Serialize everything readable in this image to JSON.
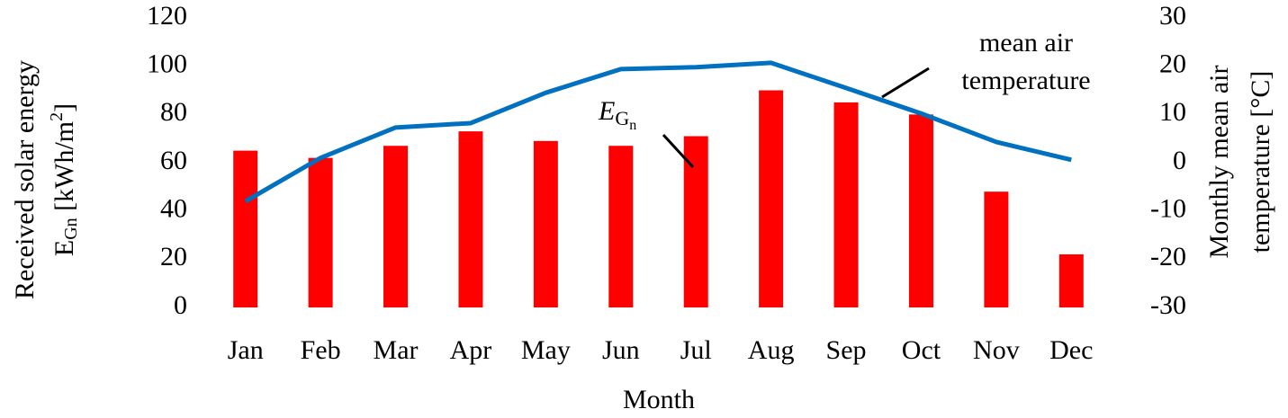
{
  "chart_data": {
    "type": "bar",
    "categories": [
      "Jan",
      "Feb",
      "Mar",
      "Apr",
      "May",
      "Jun",
      "Jul",
      "Aug",
      "Sep",
      "Oct",
      "Nov",
      "Dec"
    ],
    "series": [
      {
        "color": "#ff0000",
        "values": [
          65,
          62,
          67,
          73,
          69,
          67,
          71,
          90,
          85,
          80,
          48,
          22
        ]
      },
      {
        "type": "line",
        "axis": "y2",
        "color": "#0070c0",
        "values": [
          -8,
          1,
          7.3,
          8.2,
          14.5,
          19.4,
          19.8,
          20.7,
          15.5,
          10.2,
          4.3,
          0.6
        ]
      }
    ],
    "ylim": [
      0,
      120
    ],
    "yticks": [
      0,
      20,
      40,
      60,
      80,
      100,
      120
    ],
    "y2lim": [
      -30,
      30
    ],
    "y2ticks": [
      -30,
      -20,
      -10,
      0,
      10,
      20,
      30
    ],
    "x_label": "Month",
    "y_label": {
      "line1": "Received solar energy",
      "line2": [
        "E",
        "Gn",
        " [kWh/m",
        "2",
        "]"
      ]
    },
    "y2_label": [
      "Monthly mean air",
      "temperature [°C]"
    ],
    "annotations": {
      "temperature": [
        "mean air",
        "temperature"
      ],
      "energy": [
        "E",
        "G",
        "n"
      ]
    },
    "grid": false
  }
}
